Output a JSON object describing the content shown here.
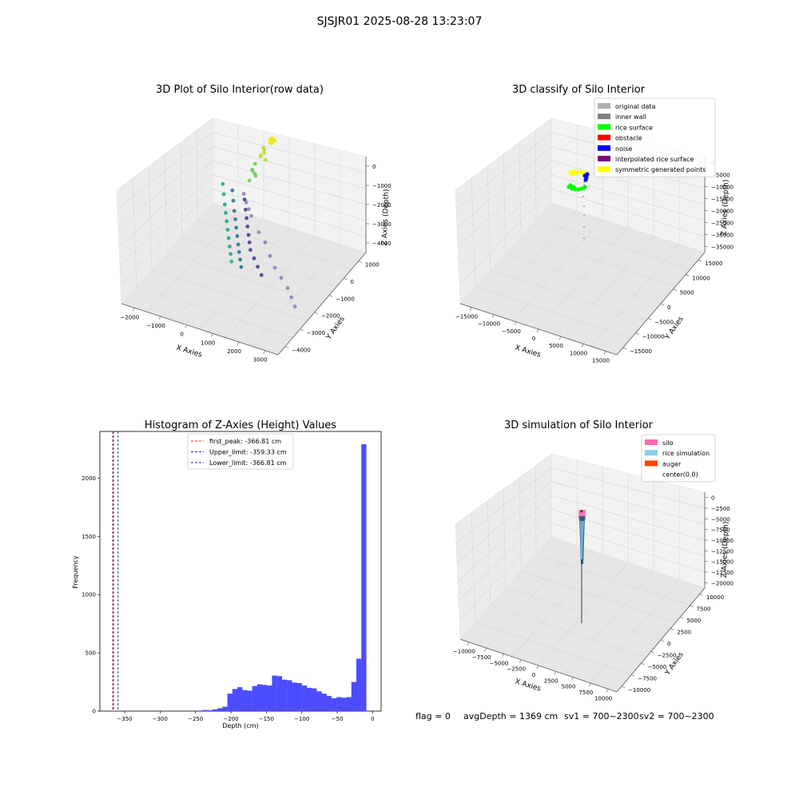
{
  "suptitle": "SJSJR01 2025-08-28 13:23:07",
  "status_line": {
    "flag": "flag = 0",
    "avg": "avgDepth = 1369 cm",
    "sv1": "sv1 = 700~2300",
    "sv2": "sv2 = 700~2300"
  },
  "colors": {
    "hist_bar": "#4d4dff",
    "first_peak": "#e8281e",
    "limit": "#1a1acc",
    "pane": "#f2f2f2",
    "silo": "#ff69b4",
    "rice_sim": "#87ceeb",
    "auger": "#ff4500"
  },
  "chart_data": [
    {
      "type": "scatter",
      "subtype": "3d",
      "title": "3D Plot of Silo Interior(row data)",
      "xlabel": "X Axies",
      "ylabel": "Y Axies",
      "zlabel": "Z Axies (Depth)",
      "x_ticks": [
        "−2000",
        "−1000",
        "0",
        "1000",
        "2000",
        "3000"
      ],
      "y_ticks": [
        "1000",
        "0",
        "−1000",
        "−2000",
        "−3000",
        "−4000"
      ],
      "z_ticks": [
        "0",
        "−1000",
        "−2000",
        "−3000",
        "−4000"
      ],
      "groups": [
        {
          "color": "#f1e51d",
          "points": [
            [
              -300,
              1500,
              -50
            ],
            [
              -200,
              1550,
              -80
            ],
            [
              -250,
              1480,
              -120
            ],
            [
              -150,
              1520,
              -60
            ],
            [
              -350,
              1560,
              -100
            ],
            [
              -280,
              1600,
              -40
            ],
            [
              -220,
              1450,
              -150
            ],
            [
              -180,
              1580,
              -90
            ],
            [
              -320,
              1500,
              -200
            ],
            [
              -260,
              1540,
              -30
            ]
          ]
        },
        {
          "color": "#b5de2b",
          "points": [
            [
              -500,
              1400,
              -500
            ],
            [
              -450,
              1350,
              -700
            ],
            [
              -550,
              1300,
              -900
            ],
            [
              -400,
              1380,
              -1100
            ],
            [
              -480,
              1420,
              -600
            ],
            [
              -520,
              1250,
              -800
            ]
          ]
        },
        {
          "color": "#6ece58",
          "points": [
            [
              -700,
              1200,
              -1300
            ],
            [
              -750,
              1100,
              -1600
            ],
            [
              -650,
              1150,
              -1900
            ],
            [
              -800,
              1000,
              -2100
            ],
            [
              -720,
              1050,
              -1500
            ],
            [
              -680,
              1120,
              -1750
            ]
          ]
        },
        {
          "color": "#9c7cb8",
          "points": [
            [
              -900,
              800,
              -2700
            ],
            [
              -700,
              600,
              -2900
            ],
            [
              -500,
              400,
              -3000
            ],
            [
              -300,
              200,
              -3100
            ],
            [
              200,
              -200,
              -3400
            ],
            [
              600,
              -500,
              -3500
            ],
            [
              1000,
              -900,
              -3700
            ],
            [
              1400,
              -1300,
              -3800
            ],
            [
              1800,
              -1600,
              -3900
            ],
            [
              2200,
              -1900,
              -4000
            ],
            [
              2500,
              -2200,
              -4100
            ],
            [
              2800,
              -2500,
              -4200
            ]
          ]
        },
        {
          "color": "#22a884",
          "points": [
            [
              -1900,
              1200,
              -3000
            ],
            [
              -1700,
              900,
              -3200
            ],
            [
              -1500,
              600,
              -3400
            ],
            [
              -1300,
              300,
              -3500
            ],
            [
              -1100,
              0,
              -3600
            ],
            [
              -900,
              -300,
              -3700
            ],
            [
              -700,
              -600,
              -3800
            ],
            [
              -500,
              -900,
              -3900
            ],
            [
              -300,
              -1200,
              -3950
            ],
            [
              -100,
              -1500,
              -4000
            ]
          ]
        },
        {
          "color": "#2a788e",
          "points": [
            [
              -1600,
              1300,
              -3300
            ],
            [
              -1400,
              1000,
              -3500
            ],
            [
              -1200,
              700,
              -3700
            ],
            [
              -1000,
              400,
              -3800
            ],
            [
              -800,
              100,
              -3900
            ],
            [
              -600,
              -200,
              -4000
            ],
            [
              -400,
              -500,
              -4100
            ],
            [
              -200,
              -800,
              -4150
            ],
            [
              0,
              -1100,
              -4200
            ],
            [
              200,
              -1400,
              -4250
            ]
          ]
        },
        {
          "color": "#414487",
          "points": [
            [
              -1200,
              1400,
              -3700
            ],
            [
              -1000,
              1100,
              -3900
            ],
            [
              -800,
              800,
              -4000
            ],
            [
              -600,
              500,
              -4100
            ],
            [
              -400,
              200,
              -4200
            ],
            [
              -200,
              -100,
              -4250
            ],
            [
              0,
              -400,
              -4300
            ],
            [
              300,
              -700,
              -4350
            ],
            [
              600,
              -1000,
              -4400
            ],
            [
              900,
              -1300,
              -4450
            ]
          ]
        }
      ]
    },
    {
      "type": "scatter",
      "subtype": "3d",
      "title": "3D classify of Silo Interior",
      "xlabel": "X Axies",
      "ylabel": "Y Axies",
      "zlabel": "Z Axies (Depth)",
      "x_ticks": [
        "−15000",
        "−10000",
        "−5000",
        "0",
        "5000",
        "10000",
        "15000"
      ],
      "y_ticks": [
        "15000",
        "10000",
        "5000",
        "0",
        "−5000",
        "−10000",
        "−15000"
      ],
      "z_ticks": [
        "0",
        "−5000",
        "−10000",
        "−15000",
        "−20000",
        "−25000",
        "−30000",
        "−35000"
      ],
      "legend": [
        "original data",
        "inner wall",
        "rice surface",
        "obstacle",
        "noise",
        "interpolated rice surface",
        "symmetric generated points"
      ],
      "legend_colors": [
        "#b0b0b0",
        "#808080",
        "#00ff00",
        "#ff0000",
        "#0000ff",
        "#800080",
        "#ffff00"
      ],
      "legend_loc": "upper right"
    },
    {
      "type": "bar",
      "subtype": "histogram",
      "title": "Histogram of Z-Axies (Height) Values",
      "xlabel": "Depth (cm)",
      "ylabel": "Frequency",
      "xlim": [
        -385,
        12
      ],
      "ylim": [
        0,
        2400
      ],
      "x_ticks": [
        -350,
        -300,
        -250,
        -200,
        -150,
        -100,
        -50,
        0
      ],
      "y_ticks": [
        0,
        500,
        1000,
        1500,
        2000
      ],
      "bin_width": 7.2,
      "bins": [
        [
          -247,
          5
        ],
        [
          -240,
          10
        ],
        [
          -233,
          8
        ],
        [
          -226,
          15
        ],
        [
          -219,
          25
        ],
        [
          -212,
          38
        ],
        [
          -205,
          150
        ],
        [
          -198,
          190
        ],
        [
          -191,
          205
        ],
        [
          -184,
          180
        ],
        [
          -177,
          175
        ],
        [
          -170,
          215
        ],
        [
          -163,
          230
        ],
        [
          -156,
          225
        ],
        [
          -149,
          220
        ],
        [
          -142,
          305
        ],
        [
          -135,
          300
        ],
        [
          -128,
          270
        ],
        [
          -121,
          265
        ],
        [
          -114,
          245
        ],
        [
          -107,
          240
        ],
        [
          -100,
          220
        ],
        [
          -93,
          200
        ],
        [
          -86,
          195
        ],
        [
          -79,
          170
        ],
        [
          -72,
          150
        ],
        [
          -65,
          130
        ],
        [
          -58,
          110
        ],
        [
          -51,
          120
        ],
        [
          -44,
          115
        ],
        [
          -37,
          120
        ],
        [
          -30,
          250
        ],
        [
          -23,
          450
        ],
        [
          -16,
          2290
        ]
      ],
      "lines": [
        {
          "label": "first_peak: -366.81 cm",
          "value": -366.81,
          "kind": "first_peak"
        },
        {
          "label": "Upper_limit: -359.33 cm",
          "value": -359.33,
          "kind": "limit"
        },
        {
          "label": "Lower_limit: -366.81 cm",
          "value": -366.81,
          "kind": "limit"
        }
      ],
      "legend_loc": "upper center"
    },
    {
      "type": "line",
      "subtype": "3d-surface",
      "title": "3D simulation of Silo Interior",
      "xlabel": "X Axies",
      "ylabel": "Y Axies",
      "zlabel": "Z Axies (Depth)",
      "x_ticks": [
        "−10000",
        "−7500",
        "−5000",
        "−2500",
        "0",
        "2500",
        "5000",
        "7500",
        "10000"
      ],
      "y_ticks": [
        "10000",
        "7500",
        "5000",
        "2500",
        "0",
        "−2500",
        "−5000",
        "−7500",
        "−10000"
      ],
      "z_ticks": [
        "0",
        "−2500",
        "−5000",
        "−7500",
        "−10000",
        "−12500",
        "−15000",
        "−17500",
        "−20000"
      ],
      "legend": [
        "silo",
        "rice simulation",
        "auger",
        "center(0,0)"
      ],
      "legend_colors": [
        "#ff69b4",
        "#87ceeb",
        "#ff4500",
        "#ffffff"
      ],
      "legend_loc": "upper right"
    }
  ]
}
